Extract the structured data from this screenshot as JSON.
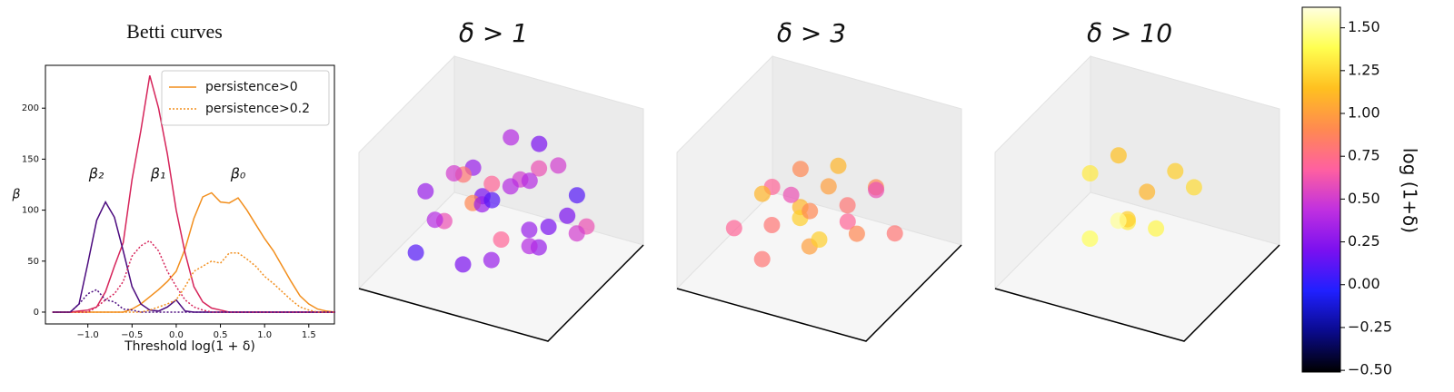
{
  "chart_data": [
    {
      "type": "line",
      "title": "Betti curves",
      "xlabel": "Threshold log(1 + δ)",
      "ylabel": "β",
      "x": [
        -1.4,
        -1.3,
        -1.2,
        -1.1,
        -1.0,
        -0.9,
        -0.8,
        -0.7,
        -0.6,
        -0.5,
        -0.4,
        -0.3,
        -0.2,
        -0.1,
        0.0,
        0.1,
        0.2,
        0.3,
        0.4,
        0.5,
        0.6,
        0.7,
        0.8,
        0.9,
        1.0,
        1.1,
        1.2,
        1.3,
        1.4,
        1.5,
        1.6,
        1.7,
        1.8
      ],
      "series": [
        {
          "name": "β₀",
          "color": "#f28e1c",
          "style": "solid",
          "values": [
            0,
            0,
            0,
            0,
            0,
            0,
            0,
            0,
            0,
            3,
            8,
            15,
            22,
            30,
            40,
            62,
            92,
            113,
            117,
            108,
            107,
            112,
            100,
            86,
            72,
            60,
            45,
            30,
            16,
            8,
            3,
            1,
            0
          ]
        },
        {
          "name": "β₁",
          "color": "#d6245a",
          "style": "solid",
          "values": [
            0,
            0,
            0,
            1,
            2,
            5,
            20,
            45,
            68,
            130,
            178,
            232,
            200,
            155,
            100,
            58,
            25,
            10,
            4,
            2,
            0,
            0,
            0,
            0,
            0,
            0,
            0,
            0,
            0,
            0,
            0,
            0,
            0
          ]
        },
        {
          "name": "β₂",
          "color": "#4b0a7e",
          "style": "solid",
          "values": [
            0,
            0,
            0,
            8,
            48,
            90,
            108,
            93,
            60,
            25,
            8,
            2,
            1,
            5,
            12,
            1,
            0,
            0,
            0,
            0,
            0,
            0,
            0,
            0,
            0,
            0,
            0,
            0,
            0,
            0,
            0,
            0,
            0
          ]
        },
        {
          "color": "#f28e1c",
          "style": "dotted",
          "values": [
            0,
            0,
            0,
            0,
            0,
            0,
            0,
            0,
            0,
            0,
            0,
            2,
            5,
            8,
            12,
            25,
            40,
            45,
            50,
            48,
            58,
            58,
            52,
            45,
            35,
            28,
            20,
            12,
            5,
            2,
            0,
            0,
            0
          ]
        },
        {
          "color": "#d6245a",
          "style": "dotted",
          "values": [
            0,
            0,
            0,
            0,
            0,
            5,
            12,
            18,
            30,
            55,
            65,
            70,
            60,
            40,
            25,
            12,
            5,
            2,
            0,
            0,
            0,
            0,
            0,
            0,
            0,
            0,
            0,
            0,
            0,
            0,
            0,
            0,
            0
          ]
        },
        {
          "color": "#4b0a7e",
          "style": "dotted",
          "values": [
            0,
            0,
            0,
            8,
            18,
            22,
            12,
            10,
            3,
            2,
            0,
            0,
            0,
            0,
            0,
            0,
            0,
            0,
            0,
            0,
            0,
            0,
            0,
            0,
            0,
            0,
            0,
            0,
            0,
            0,
            0,
            0,
            0
          ]
        }
      ],
      "legend": [
        {
          "label": "persistence>0",
          "color": "#f28e1c",
          "style": "solid"
        },
        {
          "label": "persistence>0.2",
          "color": "#f28e1c",
          "style": "dotted"
        }
      ],
      "legend_loc": "upper right",
      "xlim": [
        -1.48,
        1.79
      ],
      "xticks": [
        {
          "value": -1.0,
          "label": "−1.0"
        },
        {
          "value": -0.5,
          "label": "−0.5"
        },
        {
          "value": 0.0,
          "label": "0.0"
        },
        {
          "value": 0.5,
          "label": "0.5"
        },
        {
          "value": 1.0,
          "label": "1.0"
        },
        {
          "value": 1.5,
          "label": "1.5"
        }
      ],
      "ylim": [
        -11.6,
        242
      ],
      "yticks": [
        0,
        50,
        100,
        150,
        200
      ]
    },
    {
      "type": "scatter3d",
      "title": "δ > 1",
      "x": [
        0.2,
        0.3,
        0.5,
        0.4,
        0.6,
        0.7,
        0.3,
        0.5,
        0.8,
        0.6,
        0.2,
        0.4,
        0.7,
        0.5,
        0.3,
        0.6,
        0.8,
        0.4,
        0.5,
        0.9,
        0.1,
        0.2,
        0.7,
        0.6,
        0.3,
        0.5,
        0.4,
        0.8,
        0.6,
        0.2
      ],
      "y": [
        0.2,
        0.5,
        0.3,
        0.7,
        0.6,
        0.3,
        0.8,
        0.5,
        0.6,
        0.9,
        0.4,
        0.2,
        0.8,
        0.7,
        0.3,
        0.4,
        0.2,
        0.6,
        0.1,
        0.5,
        0.6,
        0.8,
        0.5,
        0.2,
        0.6,
        0.9,
        0.4,
        0.8,
        0.7,
        0.3
      ],
      "z": [
        0.4,
        0.5,
        0.6,
        0.3,
        0.7,
        0.4,
        0.5,
        0.2,
        0.3,
        0.6,
        0.7,
        0.5,
        0.4,
        0.8,
        0.3,
        0.5,
        0.2,
        0.6,
        0.4,
        0.3,
        0.5,
        0.2,
        0.6,
        0.3,
        0.8,
        0.4,
        0.5,
        0.6,
        0.3,
        0.2
      ],
      "c": [
        0.3,
        0.5,
        0.8,
        0.2,
        0.4,
        0.6,
        0.1,
        0.7,
        0.3,
        0.2,
        0.4,
        0.5,
        0.3,
        0.6,
        0.2,
        0.9,
        0.1,
        0.4,
        0.3,
        0.2,
        0.5,
        0.6,
        0.3,
        0.4,
        0.2,
        0.5,
        0.7,
        0.3,
        0.4,
        0.1
      ]
    },
    {
      "type": "scatter3d",
      "title": "δ > 3",
      "x": [
        0.3,
        0.5,
        0.6,
        0.4,
        0.7,
        0.2,
        0.5,
        0.8,
        0.6,
        0.3,
        0.4,
        0.7,
        0.5,
        0.9,
        0.6,
        0.3,
        0.5,
        0.7,
        0.4,
        0.6
      ],
      "y": [
        0.3,
        0.4,
        0.7,
        0.6,
        0.5,
        0.2,
        0.8,
        0.6,
        0.3,
        0.5,
        0.2,
        0.8,
        0.5,
        0.4,
        0.6,
        0.7,
        0.9,
        0.3,
        0.4,
        0.1
      ],
      "z": [
        0.5,
        0.4,
        0.6,
        0.3,
        0.5,
        0.2,
        0.7,
        0.4,
        0.3,
        0.6,
        0.4,
        0.5,
        0.2,
        0.3,
        0.7,
        0.5,
        0.4,
        0.6,
        0.3,
        0.2
      ],
      "c": [
        0.9,
        1.1,
        0.8,
        0.7,
        1.2,
        0.6,
        0.9,
        1.0,
        0.8,
        1.1,
        0.7,
        0.9,
        1.2,
        0.8,
        1.0,
        0.6,
        0.8,
        1.1,
        0.9,
        0.7
      ]
    },
    {
      "type": "scatter3d",
      "title": "δ > 10",
      "x": [
        0.6,
        0.3,
        0.4,
        0.5,
        0.7,
        0.2,
        0.6,
        0.8,
        0.5,
        0.3
      ],
      "y": [
        0.3,
        0.6,
        0.2,
        0.8,
        0.7,
        0.4,
        0.5,
        0.6,
        0.4,
        0.3
      ],
      "z": [
        0.2,
        0.6,
        0.5,
        0.7,
        0.5,
        0.3,
        0.4,
        0.6,
        0.3,
        0.6
      ],
      "c": [
        1.4,
        1.2,
        1.3,
        1.25,
        1.35,
        1.1,
        1.3,
        1.2,
        1.5,
        1.15
      ]
    },
    {
      "type": "colorbar",
      "label": "log (1+δ)",
      "colors": [
        "#000000",
        "#0a0a8c",
        "#2020ff",
        "#7a10f0",
        "#c030e0",
        "#ff60a0",
        "#ff8a50",
        "#ffc020",
        "#ffff50",
        "#ffffe0"
      ],
      "ylim": [
        -0.51,
        1.62
      ],
      "yticks": [
        {
          "value": -0.5,
          "label": "−0.50"
        },
        {
          "value": -0.25,
          "label": "−0.25"
        },
        {
          "value": 0,
          "label": "0.00"
        },
        {
          "value": 0.25,
          "label": "0.25"
        },
        {
          "value": 0.5,
          "label": "0.50"
        },
        {
          "value": 0.75,
          "label": "0.75"
        },
        {
          "value": 1.0,
          "label": "1.00"
        },
        {
          "value": 1.25,
          "label": "1.25"
        },
        {
          "value": 1.5,
          "label": "1.50"
        }
      ]
    }
  ]
}
